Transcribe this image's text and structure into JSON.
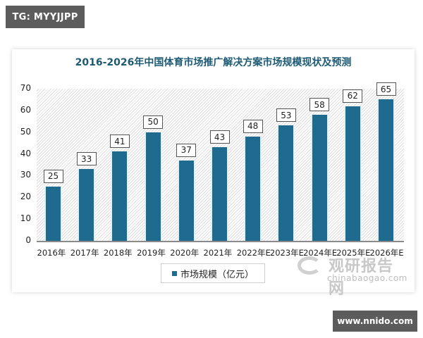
{
  "top_badge": {
    "text": "TG: MYYJJPP"
  },
  "bottom_badge": {
    "text": "www.nnido.com"
  },
  "watermark": {
    "cn": "观研报告网",
    "en": "chinabaogao.com"
  },
  "chart_data": {
    "type": "bar",
    "title": "2016-2026年中国体育市场推广解决方案市场规模现状及预测",
    "xlabel": "",
    "ylabel": "",
    "ylim": [
      0,
      70
    ],
    "yticks": [
      "0",
      "10",
      "20",
      "30",
      "40",
      "50",
      "60",
      "70"
    ],
    "grid": false,
    "legend_position": "bottom",
    "categories": [
      "2016年",
      "2017年",
      "2018年",
      "2019年",
      "2020年",
      "2021年",
      "2022年E",
      "2023年E",
      "2024年E",
      "2025年E",
      "2026年E"
    ],
    "series": [
      {
        "name": "市场规模（亿元）",
        "color": "#1f6a8f",
        "values": [
          25,
          33,
          41,
          50,
          37,
          43,
          48,
          53,
          58,
          62,
          65
        ]
      }
    ],
    "data_labels": [
      "25",
      "33",
      "41",
      "50",
      "37",
      "43",
      "48",
      "53",
      "58",
      "62",
      "65"
    ]
  }
}
